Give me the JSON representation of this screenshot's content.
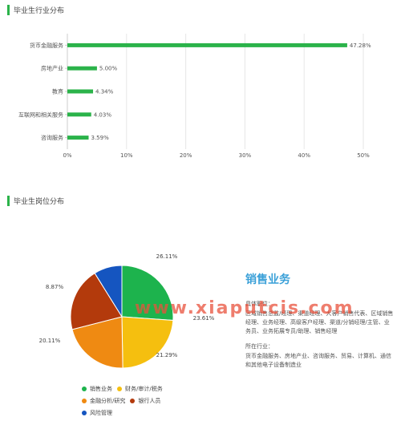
{
  "section1": {
    "title": "毕业生行业分布"
  },
  "section2": {
    "title": "毕业生岗位分布"
  },
  "chart_data": [
    {
      "type": "bar",
      "orientation": "horizontal",
      "categories": [
        "货币金融服务",
        "房地产业",
        "教育",
        "互联网和相关服务",
        "咨询服务"
      ],
      "values": [
        47.28,
        5.0,
        4.34,
        4.03,
        3.59
      ],
      "value_labels": [
        "47.28%",
        "5.00%",
        "4.34%",
        "4.03%",
        "3.59%"
      ],
      "xlim": [
        0,
        50
      ],
      "xticks": [
        "0%",
        "10%",
        "20%",
        "30%",
        "40%",
        "50%"
      ],
      "grid": true,
      "color": "#2bb34a"
    },
    {
      "type": "pie",
      "labels": [
        "销售业务",
        "财务/审计/税务",
        "金融分析/研究",
        "银行人员",
        "风险管理"
      ],
      "values": [
        26.11,
        23.61,
        21.29,
        20.11,
        8.87
      ],
      "value_labels": [
        "26.11%",
        "23.61%",
        "21.29%",
        "20.11%",
        "8.87%"
      ],
      "colors": [
        "#1db34d",
        "#f5bf0f",
        "#ef8a12",
        "#b33a0c",
        "#1555c0"
      ],
      "legend_position": "bottom"
    }
  ],
  "detail": {
    "role": "销售业务",
    "job_heading": "具体职位：",
    "job_text": "区域销售总监/经理、渠道经理、大客户销售代表、区域销售经理、业务经理、高级客户经理、渠道/分销经理/主管、业务员、业务拓展专员/助理、销售经理",
    "industry_heading": "所在行业：",
    "industry_text": "货币金融服务、房地产业、咨询服务、贸易、计算机、通信和其他电子设备制造业"
  },
  "watermark": "www.xiaputcis.com"
}
